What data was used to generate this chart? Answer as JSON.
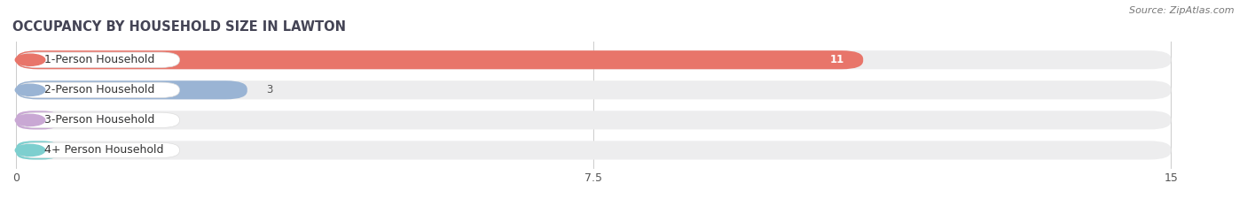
{
  "title": "OCCUPANCY BY HOUSEHOLD SIZE IN LAWTON",
  "source": "Source: ZipAtlas.com",
  "categories": [
    "1-Person Household",
    "2-Person Household",
    "3-Person Household",
    "4+ Person Household"
  ],
  "values": [
    11,
    3,
    0,
    0
  ],
  "bar_colors": [
    "#e8756a",
    "#9ab4d4",
    "#c9a8d4",
    "#7dcfcf"
  ],
  "xlim": [
    0,
    15
  ],
  "xticks": [
    0,
    7.5,
    15
  ],
  "background_color": "#ffffff",
  "bar_bg_color": "#ededee",
  "title_fontsize": 10.5,
  "source_fontsize": 8,
  "label_fontsize": 9,
  "value_fontsize": 8.5,
  "value_inside_threshold": 5
}
